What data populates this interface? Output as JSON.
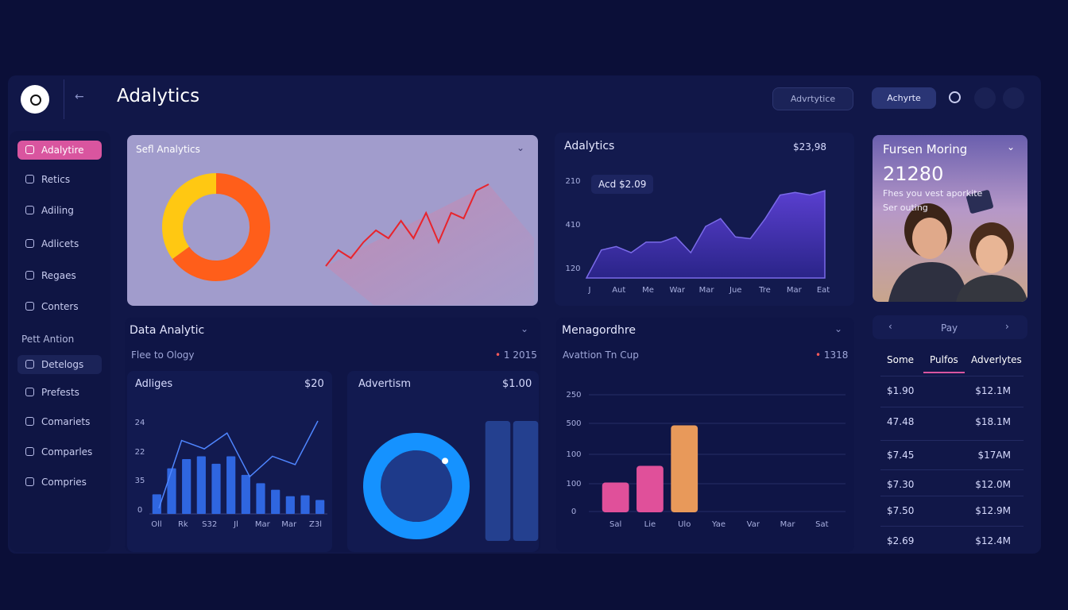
{
  "header": {
    "title": "Adalytics",
    "buttons": [
      "Advrtytice",
      "Achyrte"
    ]
  },
  "sidebar": {
    "items": [
      "Adalytire",
      "Retics",
      "Adiling",
      "Adlicets",
      "Regaes",
      "Conters"
    ],
    "section": "Pett Antion",
    "items2": [
      "Detelogs",
      "Prefests",
      "Comariets",
      "Comparles",
      "Compries"
    ]
  },
  "promo": {
    "title": "Fursen Moring",
    "value": "21280",
    "lines": [
      "Fhes you vest aporkite",
      "Ser outing"
    ]
  },
  "data_panel": {
    "title": "Data Analytic",
    "subtitle": "Flee to Ology",
    "badge": "1 2015"
  },
  "table": {
    "pager": "Pay",
    "headers": [
      "Some",
      "Pulfos",
      "Adverlytes"
    ],
    "rows": [
      [
        "$1.90",
        "$12.1M"
      ],
      [
        "47.48",
        "$18.1M"
      ],
      [
        "$7.45",
        "$17AM"
      ],
      [
        "$7.30",
        "$12.0M"
      ],
      [
        "$7.50",
        "$12.9M"
      ],
      [
        "$2.69",
        "$12.4M"
      ]
    ]
  },
  "chart_data": [
    {
      "type": "pie",
      "title": "Sefl Analytics",
      "categories": [
        null,
        null
      ],
      "values": [
        65,
        35
      ],
      "colors": [
        "#ff5e1a",
        "#ffc812"
      ]
    },
    {
      "type": "line",
      "values": [
        5,
        25,
        15,
        35,
        50,
        40,
        62,
        40,
        72,
        35,
        72,
        65,
        100,
        108
      ],
      "ylim": [
        0,
        110
      ],
      "color": "#e8242c"
    },
    {
      "type": "area",
      "title": "Adalytics",
      "summary": "$23,98",
      "tag": "Acd $2.09",
      "y_labels": [
        "210",
        "410",
        "120"
      ],
      "x_labels": [
        "J",
        "Aut",
        "Me",
        "War",
        "Mar",
        "Jue",
        "Tre",
        "Mar",
        "Eat"
      ],
      "values": [
        0,
        32,
        36,
        29,
        41,
        41,
        47,
        29,
        59,
        68,
        47,
        45,
        68,
        95,
        98,
        95,
        100
      ],
      "ylim": [
        0,
        100
      ],
      "color": "#4a36b8"
    },
    {
      "type": "combo",
      "title": "Adliges",
      "summary": "$20",
      "y_labels": [
        "24",
        "22",
        "35",
        "0"
      ],
      "x_labels": [
        "Oll",
        "Rk",
        "S32",
        "Jl",
        "Mar",
        "Mar",
        "Z3l"
      ],
      "values": [
        21,
        49,
        59,
        62,
        54,
        62,
        42,
        33,
        26,
        19,
        20,
        15
      ],
      "line_values": [
        6,
        79,
        70,
        87,
        40,
        62,
        53,
        100
      ],
      "ylim": [
        0,
        100
      ],
      "color": "#2f66e0",
      "line_color": "#4f86ff"
    },
    {
      "type": "donut",
      "title": "Advertism",
      "summary": "$1.00",
      "values": [
        100
      ],
      "color": "#1592ff"
    },
    {
      "type": "bar",
      "values": [
        100,
        100
      ],
      "ylim": [
        0,
        100
      ],
      "color": "#24408f"
    },
    {
      "type": "bar",
      "title": "Menagordhre",
      "subtitle": "Avattion Tn Cup",
      "badge": "1318",
      "y_labels": [
        "250",
        "500",
        "100",
        "100",
        "0"
      ],
      "categories": [
        "Sal",
        "Lie",
        "Ulo",
        "Yae",
        "Var",
        "Mar",
        "Sat"
      ],
      "values": [
        25,
        39,
        73,
        null,
        null,
        null,
        null
      ],
      "colors": [
        "#e0509a",
        "#e0509a",
        "#e8995a"
      ],
      "ylim": [
        0,
        100
      ]
    }
  ]
}
